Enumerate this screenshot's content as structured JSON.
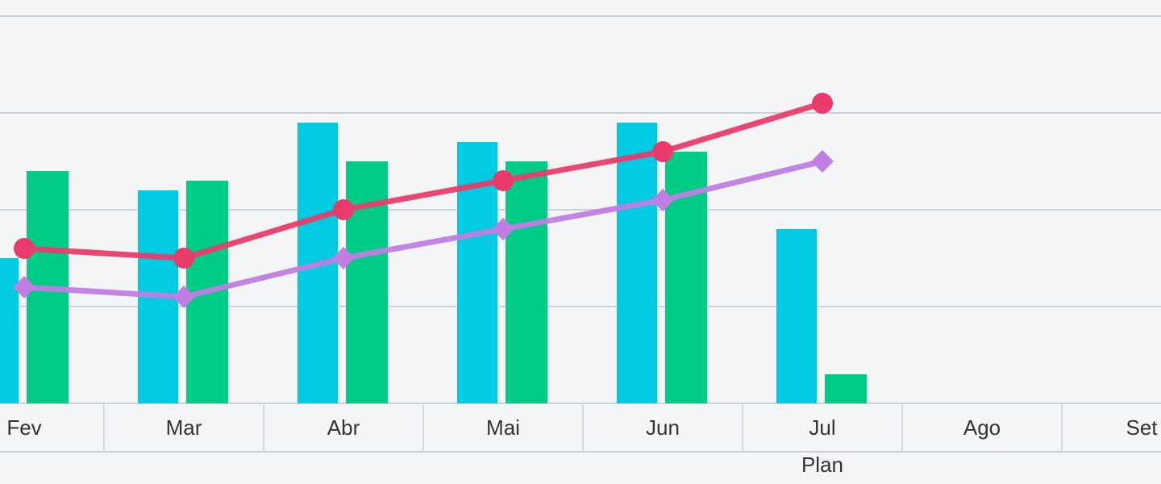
{
  "chart_data": {
    "type": "bar",
    "categories": [
      "Fev",
      "Mar",
      "Abr",
      "Mai",
      "Jun",
      "Jul",
      "Ago",
      "Set"
    ],
    "series": [
      {
        "type": "bar",
        "color": "#00cbe2",
        "values": [
          1.5,
          2.2,
          2.9,
          2.7,
          2.9,
          1.8,
          null,
          null
        ]
      },
      {
        "type": "bar",
        "color": "#00cc86",
        "values": [
          2.4,
          2.3,
          2.5,
          2.5,
          2.6,
          0.3,
          null,
          null
        ]
      },
      {
        "type": "line",
        "marker": "circle",
        "color": "#ea3c6c",
        "values": [
          1.6,
          1.5,
          2.0,
          2.3,
          2.6,
          3.1,
          null,
          null
        ]
      },
      {
        "type": "line",
        "marker": "diamond",
        "color": "#c07de2",
        "values": [
          1.2,
          1.1,
          1.5,
          1.8,
          2.1,
          2.5,
          null,
          null
        ]
      }
    ],
    "annotation": "Plan",
    "ylim": [
      0,
      4
    ],
    "yticks": [
      0,
      1,
      2,
      3,
      4
    ],
    "grid": true
  }
}
